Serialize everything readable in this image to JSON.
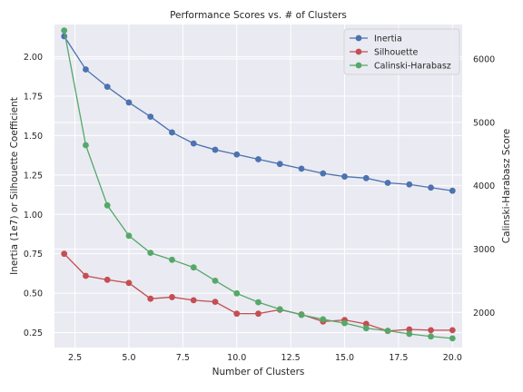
{
  "chart_data": {
    "type": "line",
    "title": "Performance Scores vs. # of Clusters",
    "xlabel": "Number of Clusters",
    "ylabel_left": "Inertia (1e7) or Silhouette Coefficient",
    "ylabel_right": "Calinski-Harabasz Score",
    "xlim": [
      1.55,
      20.45
    ],
    "ylim_left": [
      0.155,
      2.205
    ],
    "ylim_right": [
      1445,
      6545
    ],
    "x_ticks": [
      2.5,
      5.0,
      7.5,
      10.0,
      12.5,
      15.0,
      17.5,
      20.0
    ],
    "x_tick_labels": [
      "2.5",
      "5.0",
      "7.5",
      "10.0",
      "12.5",
      "15.0",
      "17.5",
      "20.0"
    ],
    "y_left_ticks": [
      0.25,
      0.5,
      0.75,
      1.0,
      1.25,
      1.5,
      1.75,
      2.0
    ],
    "y_left_tick_labels": [
      "0.25",
      "0.50",
      "0.75",
      "1.00",
      "1.25",
      "1.50",
      "1.75",
      "2.00"
    ],
    "y_right_ticks": [
      2000,
      3000,
      4000,
      5000,
      6000
    ],
    "y_right_tick_labels": [
      "2000",
      "3000",
      "4000",
      "5000",
      "6000"
    ],
    "grid": true,
    "legend_position": "top-right",
    "x": [
      2,
      3,
      4,
      5,
      6,
      7,
      8,
      9,
      10,
      11,
      12,
      13,
      14,
      15,
      16,
      17,
      18,
      19,
      20
    ],
    "series": [
      {
        "name": "Inertia",
        "axis": "left",
        "color": "#4c72b0",
        "values": [
          2.13,
          1.92,
          1.81,
          1.71,
          1.62,
          1.52,
          1.45,
          1.41,
          1.38,
          1.35,
          1.32,
          1.29,
          1.26,
          1.24,
          1.23,
          1.2,
          1.19,
          1.17,
          1.15
        ]
      },
      {
        "name": "Silhouette",
        "axis": "left",
        "color": "#c44e52",
        "values": [
          0.75,
          0.61,
          0.585,
          0.565,
          0.465,
          0.475,
          0.455,
          0.445,
          0.37,
          0.37,
          0.395,
          0.365,
          0.32,
          0.33,
          0.305,
          0.26,
          0.27,
          0.265,
          0.265
        ]
      },
      {
        "name": "Calinski-Harabasz",
        "axis": "right",
        "color": "#55a868",
        "values": [
          6450,
          4640,
          3690,
          3210,
          2940,
          2830,
          2710,
          2500,
          2300,
          2160,
          2050,
          1960,
          1890,
          1830,
          1750,
          1710,
          1660,
          1620,
          1590
        ]
      }
    ]
  }
}
